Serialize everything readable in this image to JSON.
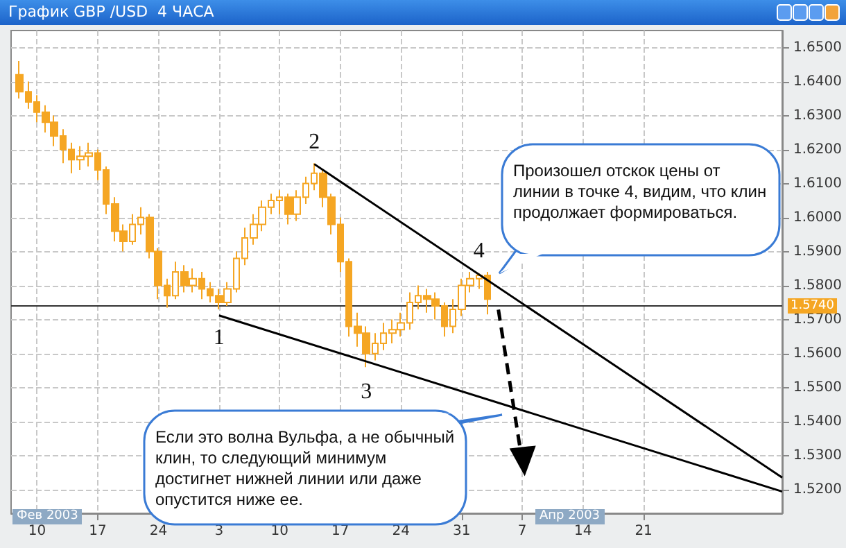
{
  "chart_data": {
    "type": "candlestick",
    "title": "График GBP /USD  4 ЧАСА",
    "color": "#f5a623",
    "x": [
      "2003-02-08",
      "2003-02-09",
      "2003-02-10",
      "2003-02-11",
      "2003-02-12",
      "2003-02-13",
      "2003-02-14",
      "2003-02-15",
      "2003-02-16",
      "2003-02-17",
      "2003-02-18",
      "2003-02-19",
      "2003-02-20",
      "2003-02-21",
      "2003-02-22",
      "2003-02-23",
      "2003-02-24",
      "2003-02-25",
      "2003-02-26",
      "2003-02-27",
      "2003-02-28",
      "2003-03-01",
      "2003-03-02",
      "2003-03-03",
      "2003-03-04",
      "2003-03-05",
      "2003-03-06",
      "2003-03-07",
      "2003-03-08",
      "2003-03-09",
      "2003-03-10",
      "2003-03-11",
      "2003-03-12",
      "2003-03-13",
      "2003-03-14",
      "2003-03-15",
      "2003-03-16",
      "2003-03-17",
      "2003-03-18",
      "2003-03-19",
      "2003-03-20",
      "2003-03-21",
      "2003-03-22",
      "2003-03-23",
      "2003-03-24",
      "2003-03-25",
      "2003-03-26",
      "2003-03-27",
      "2003-03-28",
      "2003-03-29",
      "2003-03-30",
      "2003-03-31",
      "2003-04-01",
      "2003-04-02",
      "2003-04-03"
    ],
    "ohlc": [
      [
        1.642,
        1.646,
        1.635,
        1.637
      ],
      [
        1.637,
        1.64,
        1.632,
        1.634
      ],
      [
        1.634,
        1.636,
        1.628,
        1.631
      ],
      [
        1.631,
        1.633,
        1.625,
        1.628
      ],
      [
        1.628,
        1.63,
        1.621,
        1.624
      ],
      [
        1.624,
        1.626,
        1.616,
        1.62
      ],
      [
        1.62,
        1.622,
        1.613,
        1.617
      ],
      [
        1.617,
        1.621,
        1.614,
        1.618
      ],
      [
        1.618,
        1.622,
        1.615,
        1.619
      ],
      [
        1.619,
        1.62,
        1.611,
        1.614
      ],
      [
        1.614,
        1.615,
        1.601,
        1.604
      ],
      [
        1.604,
        1.606,
        1.593,
        1.596
      ],
      [
        1.596,
        1.598,
        1.59,
        1.593
      ],
      [
        1.593,
        1.601,
        1.592,
        1.598
      ],
      [
        1.598,
        1.603,
        1.595,
        1.6
      ],
      [
        1.6,
        1.601,
        1.588,
        1.59
      ],
      [
        1.59,
        1.591,
        1.576,
        1.58
      ],
      [
        1.58,
        1.582,
        1.5735,
        1.577
      ],
      [
        1.577,
        1.587,
        1.576,
        1.584
      ],
      [
        1.584,
        1.586,
        1.578,
        1.58
      ],
      [
        1.58,
        1.585,
        1.578,
        1.582
      ],
      [
        1.582,
        1.584,
        1.576,
        1.579
      ],
      [
        1.579,
        1.581,
        1.575,
        1.577
      ],
      [
        1.577,
        1.579,
        1.573,
        1.575
      ],
      [
        1.575,
        1.581,
        1.574,
        1.579
      ],
      [
        1.579,
        1.59,
        1.578,
        1.588
      ],
      [
        1.588,
        1.597,
        1.586,
        1.594
      ],
      [
        1.594,
        1.601,
        1.592,
        1.598
      ],
      [
        1.598,
        1.605,
        1.596,
        1.603
      ],
      [
        1.603,
        1.607,
        1.601,
        1.605
      ],
      [
        1.605,
        1.608,
        1.601,
        1.606
      ],
      [
        1.606,
        1.607,
        1.598,
        1.601
      ],
      [
        1.601,
        1.608,
        1.599,
        1.606
      ],
      [
        1.606,
        1.612,
        1.604,
        1.61
      ],
      [
        1.61,
        1.616,
        1.608,
        1.613
      ],
      [
        1.613,
        1.614,
        1.603,
        1.606
      ],
      [
        1.606,
        1.607,
        1.595,
        1.598
      ],
      [
        1.598,
        1.6,
        1.584,
        1.587
      ],
      [
        1.587,
        1.588,
        1.565,
        1.568
      ],
      [
        1.568,
        1.572,
        1.562,
        1.566
      ],
      [
        1.566,
        1.568,
        1.556,
        1.56
      ],
      [
        1.56,
        1.566,
        1.558,
        1.563
      ],
      [
        1.563,
        1.569,
        1.561,
        1.566
      ],
      [
        1.566,
        1.57,
        1.563,
        1.567
      ],
      [
        1.567,
        1.572,
        1.565,
        1.569
      ],
      [
        1.569,
        1.578,
        1.567,
        1.575
      ],
      [
        1.575,
        1.58,
        1.573,
        1.577
      ],
      [
        1.577,
        1.579,
        1.572,
        1.576
      ],
      [
        1.576,
        1.578,
        1.57,
        1.574
      ],
      [
        1.574,
        1.575,
        1.565,
        1.568
      ],
      [
        1.568,
        1.576,
        1.566,
        1.573
      ],
      [
        1.573,
        1.582,
        1.571,
        1.58
      ],
      [
        1.58,
        1.584,
        1.578,
        1.582
      ],
      [
        1.582,
        1.5835,
        1.579,
        1.583
      ],
      [
        1.583,
        1.584,
        1.5715,
        1.576
      ]
    ],
    "series": [
      {
        "type": "line",
        "color": "#000000",
        "x": [
          "2003-03-14",
          "2003-05-07"
        ],
        "values": [
          1.6157,
          1.5235
        ]
      },
      {
        "type": "line",
        "color": "#000000",
        "x": [
          "2003-03-03",
          "2003-05-07"
        ],
        "values": [
          1.5712,
          1.5194
        ]
      }
    ],
    "xlim": [
      "2003-02-07",
      "2003-05-07"
    ],
    "xticks": [
      {
        "value": "2003-02-10",
        "label": "10"
      },
      {
        "value": "2003-02-17",
        "label": "17"
      },
      {
        "value": "2003-02-24",
        "label": "24"
      },
      {
        "value": "2003-03-03",
        "label": "3"
      },
      {
        "value": "2003-03-10",
        "label": "10"
      },
      {
        "value": "2003-03-17",
        "label": "17"
      },
      {
        "value": "2003-03-24",
        "label": "24"
      },
      {
        "value": "2003-03-31",
        "label": "31"
      },
      {
        "value": "2003-04-07",
        "label": "7"
      },
      {
        "value": "2003-04-14",
        "label": "14"
      },
      {
        "value": "2003-04-21",
        "label": "21"
      }
    ],
    "ylim": [
      1.513,
      1.655
    ],
    "yticks": [
      {
        "value": 1.52,
        "label": "1.5200"
      },
      {
        "value": 1.53,
        "label": "1.5300"
      },
      {
        "value": 1.54,
        "label": "1.5400"
      },
      {
        "value": 1.55,
        "label": "1.5500"
      },
      {
        "value": 1.56,
        "label": "1.5600"
      },
      {
        "value": 1.57,
        "label": "1.5700"
      },
      {
        "value": 1.58,
        "label": "1.5800"
      },
      {
        "value": 1.59,
        "label": "1.5900"
      },
      {
        "value": 1.6,
        "label": "1.6000"
      },
      {
        "value": 1.61,
        "label": "1.6100"
      },
      {
        "value": 1.62,
        "label": "1.6200"
      },
      {
        "value": 1.63,
        "label": "1.6300"
      },
      {
        "value": 1.64,
        "label": "1.6400"
      },
      {
        "value": 1.65,
        "label": "1.6500"
      }
    ],
    "ref_lines": [
      {
        "axis": "y",
        "value": 1.574,
        "label": "1.5740",
        "color": "#333333"
      }
    ],
    "grid": true,
    "annotations": [
      {
        "text": "1",
        "x": "2003-03-03",
        "y": 1.5712
      },
      {
        "text": "2",
        "x": "2003-03-14",
        "y": 1.6157
      },
      {
        "text": "3",
        "x": "2003-03-20",
        "y": 1.556
      },
      {
        "text": "4",
        "x": "2003-04-02",
        "y": 1.5835
      },
      "Произошел отскок цены от линии в точке 4, видим, что клин продолжает формироваться.",
      "Если это волна Вульфа, а не обычный клин, то следующий минимум достигнет нижней линии или даже опустится ниже ее.",
      "Фев 2003",
      "Апр 2003"
    ]
  }
}
